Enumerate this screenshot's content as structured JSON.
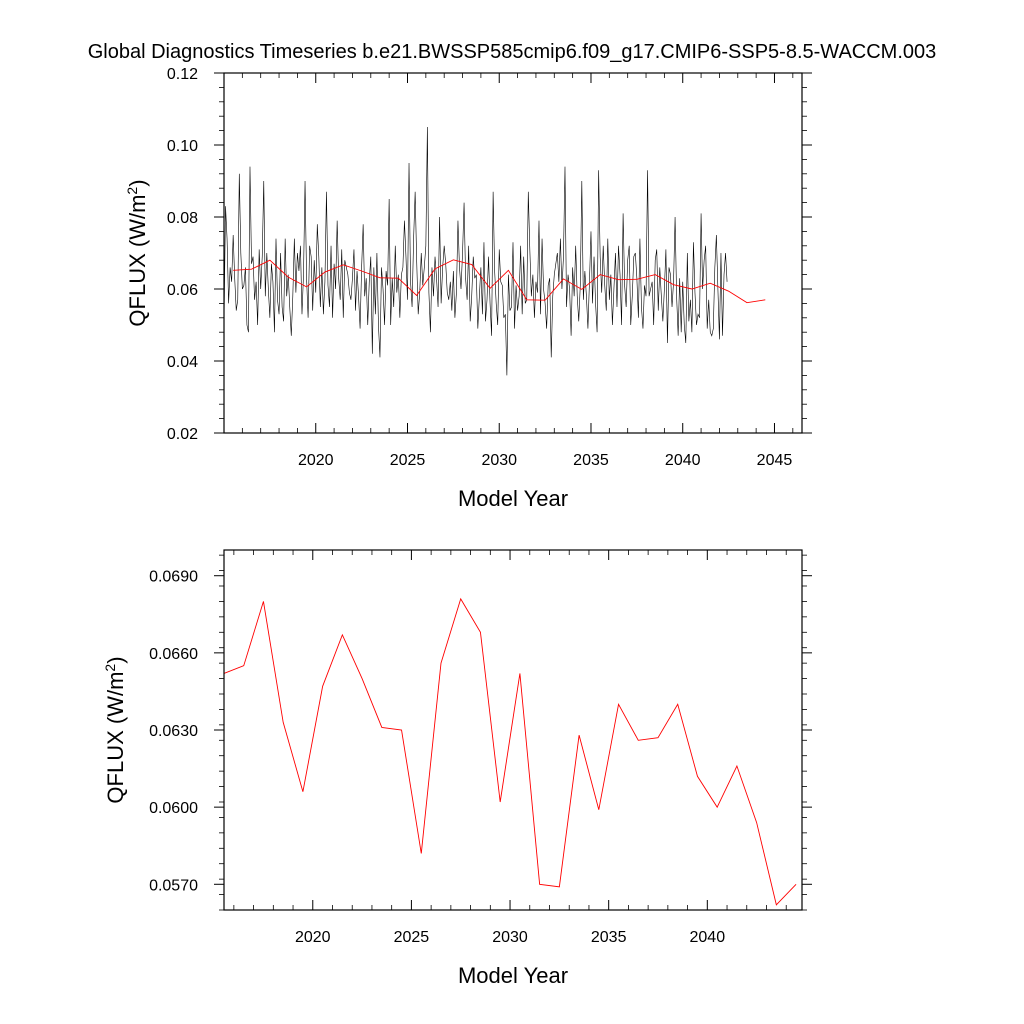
{
  "title": "Global Diagnostics Timeseries b.e21.BWSSP585cmip6.f09_g17.CMIP6-SSP5-8.5-WACCM.003",
  "colors": {
    "monthly": "#000000",
    "annual": "#ff0000",
    "frame": "#000000"
  },
  "chart_data": [
    {
      "type": "line",
      "xlabel": "Model Year",
      "ylabel_main": "QFLUX (W/m",
      "ylabel_sup": "2",
      "ylabel_end": ")",
      "xlim": [
        2015.0,
        2046.5
      ],
      "ylim": [
        0.02,
        0.12
      ],
      "xticks": [
        2020,
        2025,
        2030,
        2035,
        2040,
        2045
      ],
      "yticks": [
        0.02,
        0.04,
        0.06,
        0.08,
        0.1,
        0.12
      ],
      "ytick_labels": [
        "0.02",
        "0.04",
        "0.06",
        "0.08",
        "0.10",
        "0.12"
      ],
      "series": [
        {
          "style": "monthly",
          "x_start": 2015.0,
          "x_step": 0.0833333,
          "values": [
            0.05,
            0.083,
            0.074,
            0.056,
            0.066,
            0.062,
            0.075,
            0.063,
            0.054,
            0.057,
            0.092,
            0.07,
            0.06,
            0.061,
            0.066,
            0.05,
            0.048,
            0.094,
            0.067,
            0.069,
            0.057,
            0.062,
            0.05,
            0.071,
            0.06,
            0.069,
            0.09,
            0.058,
            0.07,
            0.06,
            0.052,
            0.067,
            0.062,
            0.048,
            0.074,
            0.057,
            0.053,
            0.07,
            0.055,
            0.051,
            0.074,
            0.058,
            0.064,
            0.055,
            0.047,
            0.058,
            0.074,
            0.059,
            0.07,
            0.065,
            0.072,
            0.053,
            0.064,
            0.09,
            0.063,
            0.052,
            0.072,
            0.069,
            0.054,
            0.068,
            0.059,
            0.078,
            0.069,
            0.055,
            0.066,
            0.053,
            0.062,
            0.087,
            0.061,
            0.055,
            0.072,
            0.052,
            0.067,
            0.06,
            0.079,
            0.063,
            0.057,
            0.071,
            0.052,
            0.068,
            0.066,
            0.064,
            0.059,
            0.057,
            0.063,
            0.071,
            0.054,
            0.065,
            0.058,
            0.049,
            0.066,
            0.078,
            0.058,
            0.063,
            0.05,
            0.062,
            0.069,
            0.042,
            0.066,
            0.053,
            0.07,
            0.05,
            0.041,
            0.066,
            0.06,
            0.05,
            0.065,
            0.061,
            0.085,
            0.05,
            0.063,
            0.055,
            0.072,
            0.059,
            0.064,
            0.052,
            0.064,
            0.066,
            0.079,
            0.069,
            0.057,
            0.095,
            0.062,
            0.055,
            0.074,
            0.087,
            0.068,
            0.053,
            0.059,
            0.07,
            0.061,
            0.066,
            0.072,
            0.105,
            0.059,
            0.048,
            0.066,
            0.058,
            0.069,
            0.063,
            0.055,
            0.08,
            0.056,
            0.066,
            0.072,
            0.067,
            0.059,
            0.057,
            0.062,
            0.054,
            0.065,
            0.052,
            0.059,
            0.079,
            0.066,
            0.06,
            0.07,
            0.084,
            0.063,
            0.057,
            0.072,
            0.051,
            0.058,
            0.069,
            0.063,
            0.064,
            0.049,
            0.058,
            0.066,
            0.053,
            0.073,
            0.051,
            0.057,
            0.069,
            0.056,
            0.047,
            0.087,
            0.065,
            0.056,
            0.05,
            0.071,
            0.062,
            0.061,
            0.052,
            0.053,
            0.036,
            0.064,
            0.054,
            0.055,
            0.073,
            0.049,
            0.061,
            0.054,
            0.058,
            0.072,
            0.053,
            0.069,
            0.056,
            0.057,
            0.087,
            0.071,
            0.058,
            0.064,
            0.052,
            0.062,
            0.059,
            0.079,
            0.053,
            0.074,
            0.06,
            0.056,
            0.049,
            0.061,
            0.063,
            0.041,
            0.058,
            0.064,
            0.067,
            0.07,
            0.062,
            0.074,
            0.06,
            0.069,
            0.094,
            0.055,
            0.064,
            0.06,
            0.047,
            0.066,
            0.058,
            0.072,
            0.058,
            0.051,
            0.061,
            0.09,
            0.057,
            0.065,
            0.058,
            0.049,
            0.062,
            0.076,
            0.056,
            0.069,
            0.056,
            0.048,
            0.093,
            0.069,
            0.059,
            0.072,
            0.061,
            0.054,
            0.074,
            0.057,
            0.064,
            0.05,
            0.06,
            0.07,
            0.055,
            0.072,
            0.064,
            0.05,
            0.081,
            0.061,
            0.055,
            0.068,
            0.072,
            0.05,
            0.058,
            0.069,
            0.07,
            0.063,
            0.052,
            0.074,
            0.055,
            0.049,
            0.061,
            0.058,
            0.093,
            0.058,
            0.06,
            0.062,
            0.05,
            0.068,
            0.071,
            0.054,
            0.066,
            0.058,
            0.051,
            0.06,
            0.071,
            0.045,
            0.066,
            0.064,
            0.055,
            0.062,
            0.08,
            0.058,
            0.047,
            0.063,
            0.048,
            0.062,
            0.05,
            0.045,
            0.07,
            0.051,
            0.057,
            0.048,
            0.073,
            0.059,
            0.05,
            0.053,
            0.052,
            0.081,
            0.06,
            0.068,
            0.072,
            0.049,
            0.057,
            0.048,
            0.047,
            0.049,
            0.066,
            0.075,
            0.06,
            0.046,
            0.07,
            0.047,
            0.064,
            0.07,
            0.062
          ]
        },
        {
          "style": "annual",
          "x": [
            2015.5,
            2016.5,
            2017.5,
            2018.5,
            2019.5,
            2020.5,
            2021.5,
            2022.5,
            2023.5,
            2024.5,
            2025.5,
            2026.5,
            2027.5,
            2028.5,
            2029.5,
            2030.5,
            2031.5,
            2032.5,
            2033.5,
            2034.5,
            2035.5,
            2036.5,
            2037.5,
            2038.5,
            2039.5,
            2040.5,
            2041.5,
            2042.5,
            2043.5,
            2044.5
          ],
          "values": [
            0.0652,
            0.0655,
            0.068,
            0.0633,
            0.0606,
            0.0647,
            0.0667,
            0.065,
            0.0631,
            0.063,
            0.0582,
            0.0656,
            0.0681,
            0.0668,
            0.0602,
            0.0652,
            0.057,
            0.0569,
            0.0628,
            0.0599,
            0.064,
            0.0626,
            0.0627,
            0.064,
            0.0612,
            0.06,
            0.0616,
            0.0594,
            0.0562,
            0.057
          ]
        }
      ]
    },
    {
      "type": "line",
      "xlabel": "Model Year",
      "ylabel_main": "QFLUX (W/m",
      "ylabel_sup": "2",
      "ylabel_end": ")",
      "xlim": [
        2015.5,
        2044.8
      ],
      "ylim": [
        0.056,
        0.07
      ],
      "xticks": [
        2020,
        2025,
        2030,
        2035,
        2040
      ],
      "yticks": [
        0.057,
        0.06,
        0.063,
        0.066,
        0.069
      ],
      "ytick_labels": [
        "0.0570",
        "0.0600",
        "0.0630",
        "0.0660",
        "0.0690"
      ],
      "series": [
        {
          "style": "annual",
          "x": [
            2015.5,
            2016.5,
            2017.5,
            2018.5,
            2019.5,
            2020.5,
            2021.5,
            2022.5,
            2023.5,
            2024.5,
            2025.5,
            2026.5,
            2027.5,
            2028.5,
            2029.5,
            2030.5,
            2031.5,
            2032.5,
            2033.5,
            2034.5,
            2035.5,
            2036.5,
            2037.5,
            2038.5,
            2039.5,
            2040.5,
            2041.5,
            2042.5,
            2043.5,
            2044.5
          ],
          "values": [
            0.0652,
            0.0655,
            0.068,
            0.0633,
            0.0606,
            0.0647,
            0.0667,
            0.065,
            0.0631,
            0.063,
            0.0582,
            0.0656,
            0.0681,
            0.0668,
            0.0602,
            0.0652,
            0.057,
            0.0569,
            0.0628,
            0.0599,
            0.064,
            0.0626,
            0.0627,
            0.064,
            0.0612,
            0.06,
            0.0616,
            0.0594,
            0.0562,
            0.057
          ]
        }
      ]
    }
  ]
}
